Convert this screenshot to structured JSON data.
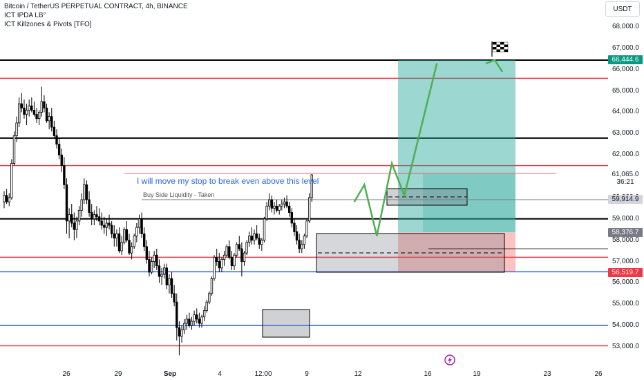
{
  "header": {
    "title": "Bitcoin / TetherUS PERPETUAL CONTRACT, 4h, BINANCE",
    "indicator1": "ICT IPDA LB°",
    "indicator2": "ICT Killzones & Pivots [TFO]"
  },
  "currency_label": "USDT",
  "annotations": {
    "stop_note": "I will move my stop to break even above this level",
    "liquidity_label": "Buy Side Liquidity - Taken"
  },
  "badges": {
    "target": "66,444.6",
    "current": "61,065.0",
    "countdown": "36:21",
    "level1": "59,914.9",
    "level2": "58,376.7",
    "stop": "56,519.7"
  },
  "colors": {
    "background": "#ffffff",
    "candle": "#000000",
    "red_level": "#f23645",
    "blue_level": "#2962ff",
    "black_level": "#000000",
    "profit_zone": "#26a69a",
    "loss_zone": "#ef5350",
    "projection": "#4caf50"
  },
  "icons": [
    "checkered-flag-icon",
    "lightning-icon"
  ],
  "chart_data": {
    "type": "candlestick",
    "timeframe": "4h",
    "x_tick_labels": [
      "26",
      "29",
      "Sep",
      "4",
      "12:00",
      "9",
      "12",
      "16",
      "19",
      "23",
      "26"
    ],
    "y_tick_labels": [
      "68,000.0",
      "67,000.0",
      "66,000.0",
      "65,000.0",
      "64,000.0",
      "63,000.0",
      "62,000.0",
      "61,000.0",
      "60,000.0",
      "59,000.0",
      "58,000.0",
      "57,000.0",
      "56,000.0",
      "55,000.0",
      "54,000.0",
      "53,000.0"
    ],
    "y_range": [
      52400,
      68700
    ],
    "horizontal_levels": [
      {
        "price": 66444,
        "color": "black"
      },
      {
        "price": 65590,
        "color": "red"
      },
      {
        "price": 62790,
        "color": "black"
      },
      {
        "price": 61500,
        "color": "red"
      },
      {
        "price": 59000,
        "color": "black"
      },
      {
        "price": 57200,
        "color": "red"
      },
      {
        "price": 56520,
        "color": "blue"
      },
      {
        "price": 54000,
        "color": "blue"
      },
      {
        "price": 53050,
        "color": "red"
      }
    ],
    "trade": {
      "entry": 58376.7,
      "target": 66444.6,
      "stop": 56519.7
    },
    "projection_path": [
      {
        "bar": 140,
        "price": 59800
      },
      {
        "bar": 144,
        "price": 60600
      },
      {
        "bar": 149,
        "price": 58200
      },
      {
        "bar": 155,
        "price": 61600
      },
      {
        "bar": 160,
        "price": 60100
      },
      {
        "bar": 173,
        "price": 66300
      }
    ],
    "candles": [
      [
        59800,
        60300,
        59500,
        60100
      ],
      [
        60100,
        60400,
        59700,
        59800
      ],
      [
        59800,
        60200,
        59600,
        60000
      ],
      [
        60000,
        61800,
        59900,
        61600
      ],
      [
        61600,
        63100,
        61500,
        62900
      ],
      [
        62900,
        63800,
        62600,
        63500
      ],
      [
        63500,
        64700,
        63300,
        64400
      ],
      [
        64400,
        64900,
        64000,
        64200
      ],
      [
        64200,
        64600,
        63700,
        63900
      ],
      [
        63900,
        64400,
        63400,
        64100
      ],
      [
        64100,
        64600,
        63800,
        64300
      ],
      [
        64300,
        64700,
        64000,
        64100
      ],
      [
        64100,
        64500,
        63800,
        63900
      ],
      [
        63900,
        64200,
        63500,
        63700
      ],
      [
        63700,
        64100,
        63400,
        64000
      ],
      [
        64000,
        65200,
        63800,
        64500
      ],
      [
        64500,
        64800,
        64000,
        64200
      ],
      [
        64200,
        64400,
        63500,
        63600
      ],
      [
        63600,
        64000,
        63200,
        63800
      ],
      [
        63800,
        64200,
        63100,
        63300
      ],
      [
        63300,
        63600,
        62800,
        62900
      ],
      [
        62900,
        63200,
        62300,
        62500
      ],
      [
        62500,
        62800,
        61800,
        62000
      ],
      [
        62000,
        62300,
        61200,
        61500
      ],
      [
        61500,
        61900,
        60400,
        60600
      ],
      [
        60600,
        60900,
        58300,
        58900
      ],
      [
        58900,
        59500,
        58100,
        59200
      ],
      [
        59200,
        59700,
        58600,
        58800
      ],
      [
        58800,
        59300,
        58000,
        58500
      ],
      [
        58500,
        59100,
        58100,
        58900
      ],
      [
        58900,
        59600,
        58700,
        59400
      ],
      [
        59400,
        60200,
        59100,
        59900
      ],
      [
        59900,
        60900,
        59700,
        60600
      ],
      [
        60600,
        60800,
        59700,
        59900
      ],
      [
        59900,
        60300,
        59100,
        59300
      ],
      [
        59300,
        59700,
        58700,
        59000
      ],
      [
        59000,
        59400,
        58700,
        59200
      ],
      [
        59200,
        59600,
        58900,
        59100
      ],
      [
        59100,
        59500,
        58700,
        58900
      ],
      [
        58900,
        59300,
        58500,
        58700
      ],
      [
        58700,
        59100,
        58300,
        58600
      ],
      [
        58600,
        59000,
        58200,
        58800
      ],
      [
        58800,
        59200,
        58500,
        58700
      ],
      [
        58700,
        58900,
        58100,
        58300
      ],
      [
        58300,
        58700,
        57700,
        58100
      ],
      [
        58100,
        58500,
        57700,
        58300
      ],
      [
        58300,
        58600,
        57400,
        57500
      ],
      [
        57500,
        58200,
        57300,
        57900
      ],
      [
        57900,
        58600,
        57800,
        58500
      ],
      [
        58500,
        58900,
        57900,
        58000
      ],
      [
        58000,
        58300,
        57300,
        57400
      ],
      [
        57400,
        57900,
        57100,
        57700
      ],
      [
        57700,
        58300,
        57600,
        58200
      ],
      [
        58200,
        58800,
        57900,
        58600
      ],
      [
        58600,
        59200,
        58300,
        59000
      ],
      [
        59000,
        59300,
        58100,
        58300
      ],
      [
        58300,
        58600,
        57500,
        57700
      ],
      [
        57700,
        58000,
        56900,
        57100
      ],
      [
        57100,
        57500,
        56300,
        56500
      ],
      [
        56500,
        57200,
        56400,
        57000
      ],
      [
        57000,
        57500,
        56700,
        57300
      ],
      [
        57300,
        57600,
        56600,
        56800
      ],
      [
        56800,
        57100,
        56000,
        56300
      ],
      [
        56300,
        56700,
        55900,
        56400
      ],
      [
        56400,
        56900,
        56200,
        56700
      ],
      [
        56700,
        56900,
        55700,
        55900
      ],
      [
        55900,
        56400,
        55500,
        56200
      ],
      [
        56200,
        56500,
        55300,
        55500
      ],
      [
        55500,
        55900,
        54900,
        55100
      ],
      [
        55100,
        55500,
        53300,
        53900
      ],
      [
        53900,
        54200,
        52600,
        53500
      ],
      [
        53500,
        54000,
        53200,
        53800
      ],
      [
        53800,
        54300,
        53600,
        54100
      ],
      [
        54100,
        54500,
        53800,
        54300
      ],
      [
        54300,
        54600,
        53900,
        54000
      ],
      [
        54000,
        54400,
        53800,
        54200
      ],
      [
        54200,
        54700,
        54000,
        54500
      ],
      [
        54500,
        54800,
        54100,
        54300
      ],
      [
        54300,
        54600,
        53900,
        54100
      ],
      [
        54100,
        54500,
        53900,
        54400
      ],
      [
        54400,
        54900,
        54200,
        54700
      ],
      [
        54700,
        55200,
        54600,
        55100
      ],
      [
        55100,
        55600,
        55000,
        55500
      ],
      [
        55500,
        56300,
        55400,
        56200
      ],
      [
        56200,
        57300,
        56100,
        57200
      ],
      [
        57200,
        57600,
        56800,
        57000
      ],
      [
        57000,
        57400,
        56500,
        56700
      ],
      [
        56700,
        57200,
        56500,
        57100
      ],
      [
        57100,
        57500,
        56800,
        57300
      ],
      [
        57300,
        57800,
        57200,
        57700
      ],
      [
        57700,
        58000,
        57100,
        57200
      ],
      [
        57200,
        57500,
        56600,
        56800
      ],
      [
        56800,
        57400,
        56600,
        57300
      ],
      [
        57300,
        57900,
        57200,
        57800
      ],
      [
        57800,
        58200,
        57500,
        57600
      ],
      [
        57600,
        57900,
        56300,
        57000
      ],
      [
        57000,
        57500,
        56800,
        57400
      ],
      [
        57400,
        58000,
        57300,
        57900
      ],
      [
        57900,
        58400,
        57700,
        58200
      ],
      [
        58200,
        58600,
        57800,
        58000
      ],
      [
        58000,
        58500,
        57800,
        58300
      ],
      [
        58300,
        58700,
        58000,
        58100
      ],
      [
        58100,
        58300,
        57600,
        57800
      ],
      [
        57800,
        58100,
        57500,
        58000
      ],
      [
        58000,
        59100,
        57900,
        59000
      ],
      [
        59000,
        59800,
        58900,
        59600
      ],
      [
        59600,
        60200,
        59400,
        59900
      ],
      [
        59900,
        60100,
        59300,
        59500
      ],
      [
        59500,
        59800,
        59200,
        59600
      ],
      [
        59600,
        59900,
        59300,
        59400
      ],
      [
        59400,
        59700,
        59200,
        59600
      ],
      [
        59600,
        59900,
        59400,
        59700
      ],
      [
        59700,
        60000,
        59500,
        59800
      ],
      [
        59800,
        60100,
        59500,
        59600
      ],
      [
        59600,
        59800,
        59100,
        59300
      ],
      [
        59300,
        59500,
        58600,
        58800
      ],
      [
        58800,
        59000,
        58200,
        58400
      ],
      [
        58400,
        58700,
        57800,
        58000
      ],
      [
        58000,
        58300,
        57400,
        57600
      ],
      [
        57600,
        58000,
        57400,
        57800
      ],
      [
        57800,
        58300,
        57600,
        58200
      ],
      [
        58200,
        59000,
        58100,
        58900
      ],
      [
        58900,
        60200,
        58800,
        60000
      ],
      [
        60000,
        61100,
        59800,
        61065
      ]
    ]
  }
}
